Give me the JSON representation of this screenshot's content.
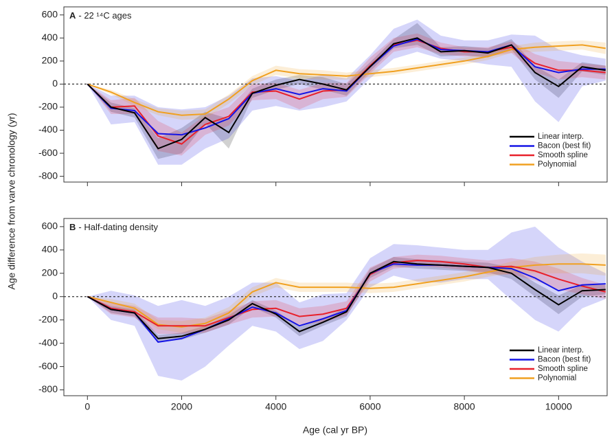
{
  "chart_data": [
    {
      "type": "line",
      "panel_label": "A",
      "title": "- 22 ¹⁴C ages",
      "ylabel": "Age difference from varve chronology (yr)",
      "x": [
        0,
        500,
        1000,
        1500,
        2000,
        2500,
        3000,
        3500,
        4000,
        4500,
        5000,
        5500,
        6000,
        6500,
        7000,
        7500,
        8000,
        8500,
        9000,
        9500,
        10000,
        10500,
        11000
      ],
      "xlim": [
        -500,
        11030
      ],
      "xticks": [
        0,
        2000,
        4000,
        6000,
        8000,
        10000
      ],
      "ylim": [
        -850,
        670
      ],
      "yticks": [
        -800,
        -600,
        -400,
        -200,
        0,
        200,
        400,
        600
      ],
      "zero_line": true,
      "legend": "lower right",
      "series": [
        {
          "name": "Linear interp.",
          "color": "#000000",
          "values": [
            0,
            -200,
            -250,
            -560,
            -480,
            -290,
            -420,
            -80,
            -10,
            40,
            0,
            -50,
            150,
            350,
            400,
            280,
            290,
            270,
            340,
            100,
            -20,
            150,
            120
          ],
          "lower": [
            0,
            -240,
            -290,
            -650,
            -600,
            -340,
            -560,
            -120,
            -50,
            0,
            -50,
            -100,
            110,
            310,
            340,
            240,
            250,
            230,
            300,
            40,
            -120,
            110,
            80
          ],
          "upper": [
            0,
            -160,
            -210,
            -470,
            -380,
            -240,
            -300,
            -40,
            40,
            80,
            60,
            0,
            190,
            390,
            530,
            320,
            330,
            310,
            390,
            160,
            40,
            190,
            160
          ]
        },
        {
          "name": "Bacon (best fit)",
          "color": "#1414e6",
          "values": [
            0,
            -210,
            -230,
            -430,
            -440,
            -380,
            -300,
            -80,
            -40,
            -90,
            -40,
            -60,
            150,
            330,
            390,
            300,
            290,
            280,
            340,
            150,
            100,
            130,
            130
          ],
          "lower": [
            0,
            -350,
            -330,
            -700,
            -700,
            -560,
            -470,
            -230,
            -190,
            -230,
            -200,
            -150,
            50,
            220,
            280,
            220,
            200,
            170,
            150,
            -150,
            -330,
            -20,
            30
          ],
          "upper": [
            0,
            -100,
            -100,
            -200,
            -220,
            -200,
            -100,
            50,
            70,
            30,
            80,
            50,
            250,
            480,
            560,
            420,
            380,
            380,
            430,
            420,
            300,
            250,
            220
          ]
        },
        {
          "name": "Smooth spline",
          "color": "#e8202a",
          "values": [
            0,
            -200,
            -190,
            -450,
            -520,
            -350,
            -280,
            -70,
            -60,
            -130,
            -60,
            -50,
            160,
            340,
            380,
            310,
            280,
            280,
            320,
            180,
            120,
            120,
            100
          ],
          "lower": [
            0,
            -260,
            -260,
            -580,
            -620,
            -440,
            -360,
            -140,
            -130,
            -220,
            -130,
            -110,
            90,
            280,
            320,
            260,
            240,
            240,
            270,
            100,
            40,
            60,
            40
          ],
          "upper": [
            0,
            -140,
            -120,
            -320,
            -420,
            -270,
            -200,
            0,
            10,
            -50,
            10,
            10,
            230,
            400,
            440,
            360,
            320,
            320,
            370,
            260,
            200,
            180,
            160
          ]
        },
        {
          "name": "Polynomial",
          "color": "#f0a020",
          "values": [
            0,
            -70,
            -160,
            -240,
            -270,
            -260,
            -130,
            30,
            120,
            90,
            80,
            70,
            90,
            110,
            140,
            170,
            200,
            240,
            300,
            320,
            330,
            340,
            310
          ],
          "lower": [
            0,
            -90,
            -190,
            -270,
            -310,
            -300,
            -170,
            -10,
            80,
            50,
            40,
            40,
            60,
            80,
            110,
            140,
            170,
            210,
            270,
            280,
            290,
            300,
            260
          ],
          "upper": [
            0,
            -50,
            -130,
            -210,
            -230,
            -220,
            -90,
            70,
            160,
            130,
            120,
            100,
            120,
            140,
            170,
            200,
            230,
            270,
            330,
            360,
            370,
            380,
            360
          ]
        }
      ]
    },
    {
      "type": "line",
      "panel_label": "B",
      "title": "- Half-dating density",
      "xlabel": "Age (cal yr BP)",
      "x": [
        0,
        500,
        1000,
        1500,
        2000,
        2500,
        3000,
        3500,
        4000,
        4500,
        5000,
        5500,
        6000,
        6500,
        7000,
        7500,
        8000,
        8500,
        9000,
        9500,
        10000,
        10500,
        11000
      ],
      "xlim": [
        -500,
        11030
      ],
      "xticks": [
        0,
        2000,
        4000,
        6000,
        8000,
        10000
      ],
      "ylim": [
        -850,
        670
      ],
      "yticks": [
        -800,
        -600,
        -400,
        -200,
        0,
        200,
        400,
        600
      ],
      "zero_line": true,
      "legend": "lower right",
      "series": [
        {
          "name": "Linear interp.",
          "color": "#000000",
          "values": [
            0,
            -110,
            -140,
            -360,
            -340,
            -280,
            -200,
            -60,
            -150,
            -300,
            -220,
            -130,
            200,
            300,
            280,
            270,
            260,
            250,
            200,
            60,
            -70,
            50,
            60
          ],
          "lower": [
            0,
            -140,
            -170,
            -390,
            -370,
            -310,
            -240,
            -90,
            -180,
            -340,
            -250,
            -170,
            160,
            260,
            240,
            230,
            220,
            210,
            150,
            0,
            -150,
            0,
            20
          ],
          "upper": [
            0,
            -80,
            -110,
            -330,
            -310,
            -250,
            -160,
            -30,
            -120,
            -260,
            -190,
            -90,
            240,
            340,
            320,
            310,
            300,
            290,
            250,
            120,
            10,
            100,
            100
          ]
        },
        {
          "name": "Bacon (best fit)",
          "color": "#1414e6",
          "values": [
            0,
            -110,
            -140,
            -390,
            -360,
            -280,
            -190,
            -90,
            -140,
            -250,
            -190,
            -120,
            200,
            280,
            270,
            270,
            260,
            250,
            240,
            160,
            50,
            100,
            110
          ],
          "lower": [
            0,
            -200,
            -250,
            -680,
            -720,
            -600,
            -420,
            -250,
            -300,
            -450,
            -380,
            -200,
            80,
            180,
            130,
            120,
            150,
            150,
            -30,
            -200,
            -300,
            -100,
            -20
          ],
          "upper": [
            0,
            50,
            10,
            -80,
            -30,
            -80,
            0,
            120,
            120,
            -50,
            20,
            30,
            330,
            450,
            440,
            420,
            400,
            400,
            550,
            600,
            420,
            300,
            200
          ]
        },
        {
          "name": "Smooth spline",
          "color": "#e8202a",
          "values": [
            0,
            -100,
            -130,
            -250,
            -250,
            -250,
            -180,
            -110,
            -100,
            -170,
            -150,
            -100,
            190,
            290,
            310,
            300,
            280,
            250,
            260,
            220,
            150,
            90,
            40
          ],
          "lower": [
            0,
            -150,
            -180,
            -320,
            -320,
            -310,
            -240,
            -180,
            -170,
            -240,
            -220,
            -160,
            130,
            240,
            260,
            250,
            230,
            190,
            190,
            140,
            60,
            20,
            -20
          ],
          "upper": [
            0,
            -50,
            -80,
            -180,
            -180,
            -190,
            -120,
            -40,
            -30,
            -100,
            -80,
            -40,
            250,
            340,
            360,
            350,
            330,
            310,
            330,
            300,
            240,
            160,
            100
          ]
        },
        {
          "name": "Polynomial",
          "color": "#f0a020",
          "values": [
            0,
            -50,
            -100,
            -240,
            -260,
            -230,
            -140,
            40,
            120,
            80,
            80,
            80,
            70,
            80,
            110,
            140,
            170,
            210,
            250,
            270,
            280,
            280,
            270
          ],
          "lower": [
            0,
            -80,
            -140,
            -280,
            -310,
            -280,
            -190,
            0,
            80,
            40,
            40,
            40,
            30,
            40,
            70,
            100,
            130,
            170,
            200,
            200,
            200,
            200,
            180
          ],
          "upper": [
            0,
            -20,
            -60,
            -200,
            -210,
            -180,
            -90,
            80,
            160,
            120,
            120,
            120,
            110,
            120,
            150,
            180,
            210,
            250,
            300,
            340,
            360,
            370,
            360
          ]
        }
      ]
    }
  ]
}
